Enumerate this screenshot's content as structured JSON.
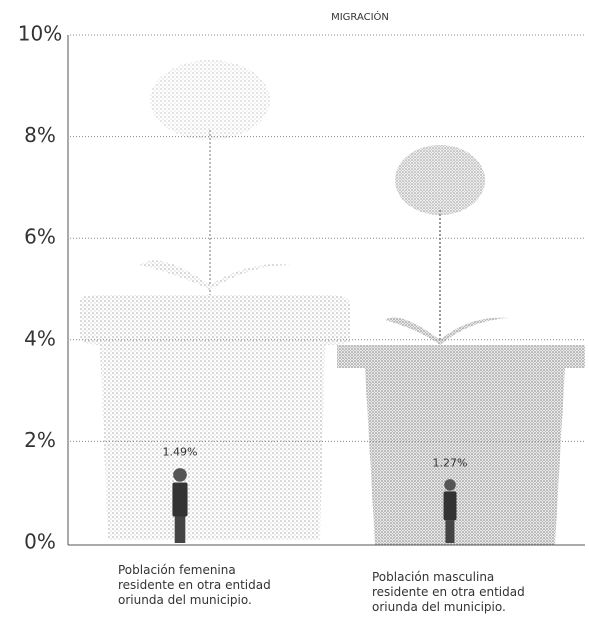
{
  "chart_data": {
    "type": "bar",
    "title": "MIGRACIÓN",
    "categories": [
      "Población femenina\nresidente en otra entidad\noriunda del municipio.",
      "Población masculina\nresidente en otra entidad\noriunda del municipio."
    ],
    "values": [
      1.49,
      1.27
    ],
    "value_labels": [
      "1.49%",
      "1.27%"
    ],
    "color": "#333333",
    "ylim": [
      0,
      10
    ],
    "yticks": [
      {
        "value": 0,
        "label": "0%"
      },
      {
        "value": 2,
        "label": "2%"
      },
      {
        "value": 4,
        "label": "4%"
      },
      {
        "value": 6,
        "label": "6%"
      },
      {
        "value": 8,
        "label": "8%"
      },
      {
        "value": 10,
        "label": "10%"
      }
    ],
    "grid": true
  }
}
